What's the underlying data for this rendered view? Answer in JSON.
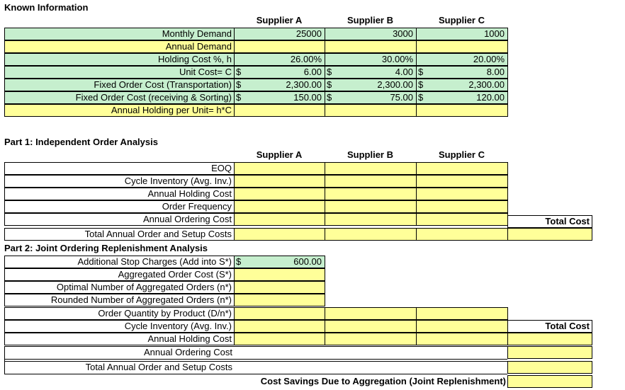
{
  "known": {
    "title": "Known Information",
    "suppliers": [
      "Supplier A",
      "Supplier B",
      "Supplier C"
    ],
    "rows": [
      {
        "label": "Monthly Demand",
        "values": [
          "25000",
          "3000",
          "1000"
        ]
      },
      {
        "label": "Annual Demand",
        "values": [
          "",
          "",
          ""
        ]
      },
      {
        "label": "Holding Cost %, h",
        "values": [
          "26.00%",
          "30.00%",
          "20.00%"
        ]
      },
      {
        "label": "Unit Cost= C",
        "values": [
          "6.00",
          "4.00",
          "8.00"
        ]
      },
      {
        "label": "Fixed Order Cost (Transportation)",
        "values": [
          "2,300.00",
          "2,300.00",
          "2,300.00"
        ]
      },
      {
        "label": "Fixed Order Cost (receiving & Sorting)",
        "values": [
          "150.00",
          "75.00",
          "120.00"
        ]
      },
      {
        "label": "Annual Holding per Unit= h*C",
        "values": [
          "",
          "",
          ""
        ]
      }
    ],
    "currency": "$"
  },
  "part1": {
    "title": "Part 1: Independent Order Analysis",
    "suppliers": [
      "Supplier A",
      "Supplier B",
      "Supplier C"
    ],
    "rows": [
      "EOQ",
      "Cycle Inventory (Avg. Inv.)",
      "Annual Holding Cost",
      "Order Frequency",
      "Annual Ordering Cost",
      "Total Annual Order and Setup Costs"
    ],
    "total_cost_label": "Total Cost"
  },
  "part2": {
    "title": "Part 2: Joint Ordering Replenishment Analysis",
    "rows": [
      "Additional Stop Charges (Add into S*)",
      "Aggregated Order Cost (S*)",
      "Optimal Number of Aggregated Orders (n*)",
      "Rounded Number of Aggregated Orders (n*)",
      "Order Quantity by Product (D/n*)",
      "Cycle Inventory (Avg. Inv.)",
      "Annual Holding Cost",
      "Annual Ordering Cost",
      "Total Annual Order and Setup Costs"
    ],
    "stop_charge_value": "600.00",
    "currency": "$",
    "total_cost_label": "Total Cost",
    "savings_label": "Cost Savings Due to Aggregation (Joint Replenishment)"
  },
  "colors": {
    "input_green": "#c6efce",
    "calc_yellow": "#ffff99"
  }
}
